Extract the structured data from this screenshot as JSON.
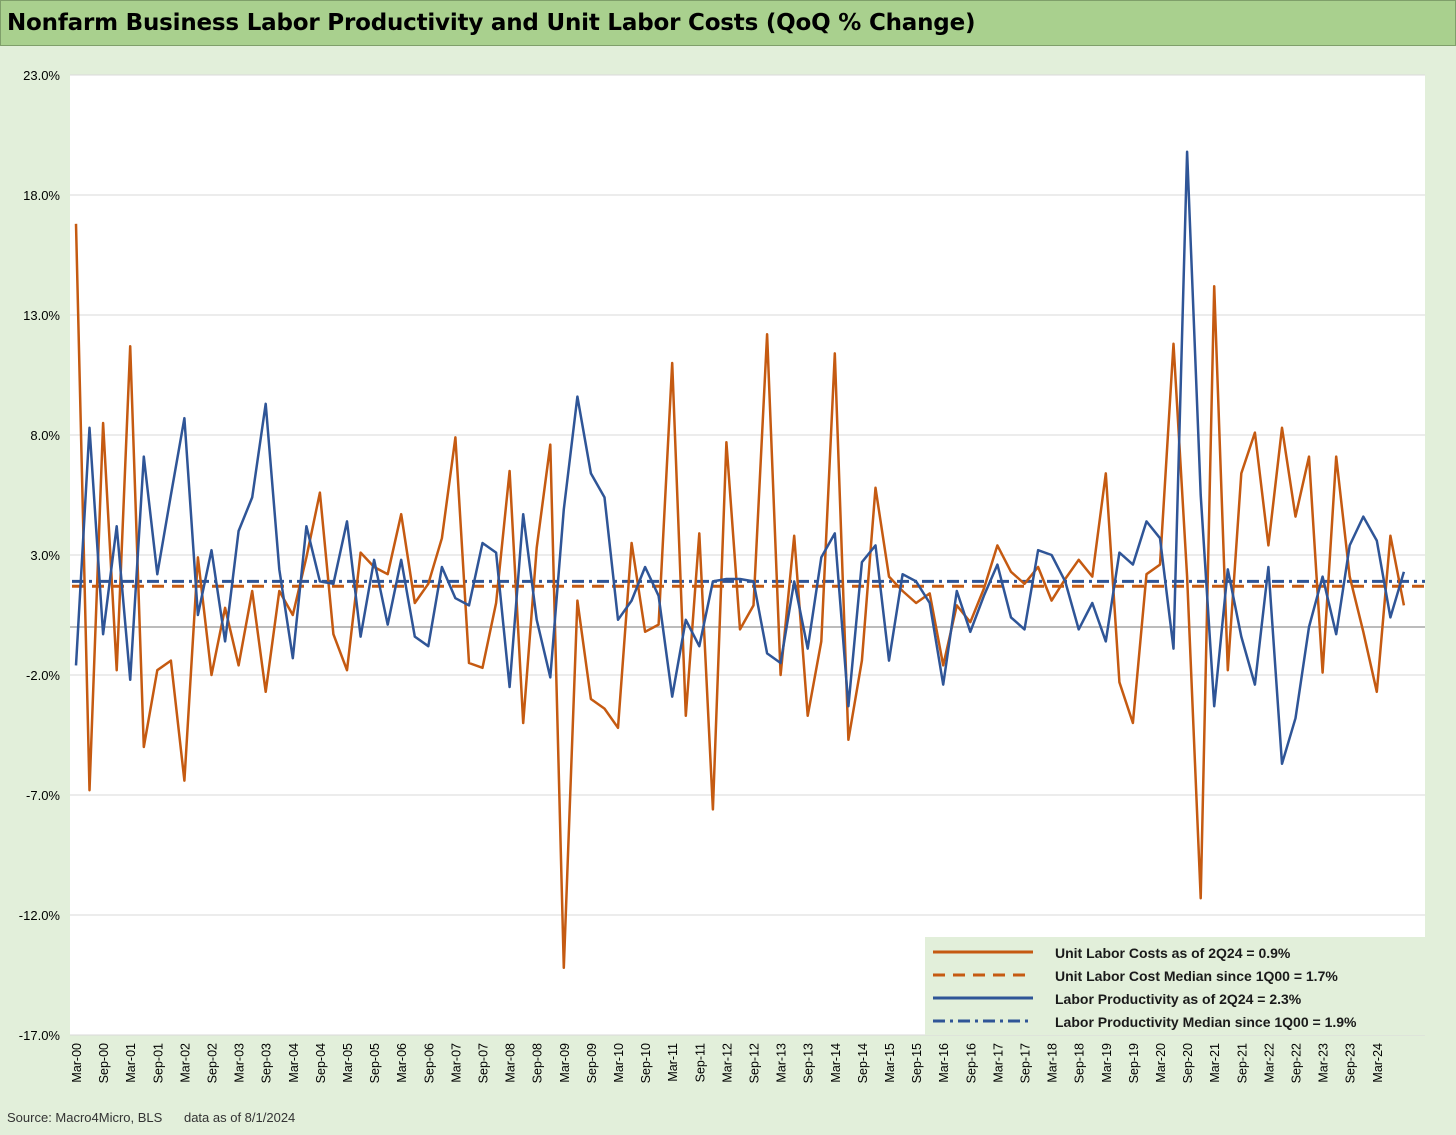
{
  "title": "Nonfarm Business Labor Productivity and Unit Labor Costs (QoQ % Change)",
  "footer": {
    "source": "Source: Macro4Micro, BLS",
    "asof": "data as of 8/1/2024"
  },
  "colors": {
    "ulc": "#c55a11",
    "productivity": "#2f5597",
    "background": "#e2efda",
    "title_bar": "#a9d08e"
  },
  "chart_data": {
    "type": "line",
    "title": "Nonfarm Business Labor Productivity and Unit Labor Costs (QoQ % Change)",
    "ylim": [
      -17,
      23
    ],
    "y_ticks": [
      "23.0%",
      "18.0%",
      "13.0%",
      "8.0%",
      "3.0%",
      "-2.0%",
      "-7.0%",
      "-12.0%",
      "-17.0%"
    ],
    "y_tick_values": [
      23,
      18,
      13,
      8,
      3,
      -2,
      -7,
      -12,
      -17
    ],
    "x_tick_labels": [
      "Mar-00",
      "Sep-00",
      "Mar-01",
      "Sep-01",
      "Mar-02",
      "Sep-02",
      "Mar-03",
      "Sep-03",
      "Mar-04",
      "Sep-04",
      "Mar-05",
      "Sep-05",
      "Mar-06",
      "Sep-06",
      "Mar-07",
      "Sep-07",
      "Mar-08",
      "Sep-08",
      "Mar-09",
      "Sep-09",
      "Mar-10",
      "Sep-10",
      "Mar-11",
      "Sep-11",
      "Mar-12",
      "Sep-12",
      "Mar-13",
      "Sep-13",
      "Mar-14",
      "Sep-14",
      "Mar-15",
      "Sep-15",
      "Mar-16",
      "Sep-16",
      "Mar-17",
      "Sep-17",
      "Mar-18",
      "Sep-18",
      "Mar-19",
      "Sep-19",
      "Mar-20",
      "Sep-20",
      "Mar-21",
      "Sep-21",
      "Mar-22",
      "Sep-22",
      "Mar-23",
      "Sep-23",
      "Mar-24"
    ],
    "x_start": "Mar-00",
    "x_end": "Jun-24",
    "grid": "horizontal",
    "legend_position": "bottom-right",
    "series": [
      {
        "name": "Unit Labor Costs as of 2Q24 = 0.9%",
        "style": "solid",
        "color": "#c55a11",
        "values": [
          16.8,
          -6.8,
          8.5,
          -1.8,
          11.7,
          -5.0,
          -1.8,
          -1.4,
          -6.4,
          2.9,
          -2.0,
          0.8,
          -1.6,
          1.5,
          -2.7,
          1.5,
          0.5,
          2.9,
          5.6,
          -0.3,
          -1.8,
          3.1,
          2.5,
          2.2,
          4.7,
          1.0,
          1.8,
          3.7,
          7.9,
          -1.5,
          -1.7,
          1.0,
          6.5,
          -4.0,
          3.3,
          7.6,
          -14.2,
          1.1,
          -3.0,
          -3.4,
          -4.2,
          3.5,
          -0.2,
          0.1,
          11.0,
          -3.7,
          3.9,
          -7.6,
          7.7,
          -0.1,
          0.9,
          12.2,
          -2.0,
          3.8,
          -3.7,
          -0.6,
          11.4,
          -4.7,
          -1.4,
          5.8,
          2.1,
          1.5,
          1.0,
          1.4,
          -1.6,
          0.9,
          0.2,
          1.6,
          3.4,
          2.3,
          1.8,
          2.5,
          1.1,
          2.0,
          2.8,
          2.1,
          6.4,
          -2.3,
          -4.0,
          2.2,
          2.6,
          11.8,
          2.1,
          -11.3,
          14.2,
          -1.8,
          6.4,
          8.1,
          3.4,
          8.3,
          4.6,
          7.1,
          -1.9,
          7.1,
          2.1,
          -0.2,
          -2.7,
          3.8,
          0.9
        ]
      },
      {
        "name": "Unit Labor Cost Median since 1Q00 = 1.7%",
        "style": "dashed",
        "color": "#c55a11",
        "constant": 1.7
      },
      {
        "name": "Labor Productivity as of 2Q24 = 2.3%",
        "style": "solid",
        "color": "#2f5597",
        "values": [
          -1.6,
          8.3,
          -0.3,
          4.2,
          -2.2,
          7.1,
          2.2,
          5.5,
          8.7,
          0.5,
          3.2,
          -0.6,
          4.0,
          5.4,
          9.3,
          2.4,
          -1.3,
          4.2,
          1.9,
          1.8,
          4.4,
          -0.4,
          2.8,
          0.1,
          2.8,
          -0.4,
          -0.8,
          2.5,
          1.2,
          0.9,
          3.5,
          3.1,
          -2.5,
          4.7,
          0.3,
          -2.1,
          4.9,
          9.6,
          6.4,
          5.4,
          0.3,
          1.1,
          2.5,
          1.3,
          -2.9,
          0.3,
          -0.8,
          1.9,
          2.0,
          2.0,
          1.9,
          -1.1,
          -1.5,
          1.9,
          -0.9,
          2.9,
          3.9,
          -3.3,
          2.7,
          3.4,
          -1.4,
          2.2,
          1.9,
          1.0,
          -2.4,
          1.5,
          -0.2,
          1.3,
          2.6,
          0.4,
          -0.1,
          3.2,
          3.0,
          1.9,
          -0.1,
          1.0,
          -0.6,
          3.1,
          2.6,
          4.4,
          3.7,
          -0.9,
          19.8,
          5.5,
          -3.3,
          2.4,
          -0.4,
          -2.4,
          2.5,
          -5.7,
          -3.8,
          0.0,
          2.1,
          -0.3,
          3.4,
          4.6,
          3.6,
          0.4,
          2.3
        ]
      },
      {
        "name": "Labor Productivity Median since 1Q00 = 1.9%",
        "style": "dashdot",
        "color": "#2f5597",
        "constant": 1.9
      }
    ]
  },
  "legend": {
    "items": [
      {
        "label": "Unit Labor Costs as of 2Q24 = 0.9%",
        "style": "solid",
        "color": "#c55a11"
      },
      {
        "label": "Unit Labor Cost Median since 1Q00 = 1.7%",
        "style": "dashed",
        "color": "#c55a11"
      },
      {
        "label": "Labor Productivity as of 2Q24 = 2.3%",
        "style": "solid",
        "color": "#2f5597"
      },
      {
        "label": "Labor Productivity Median since 1Q00 = 1.9%",
        "style": "dashdot",
        "color": "#2f5597"
      }
    ]
  }
}
